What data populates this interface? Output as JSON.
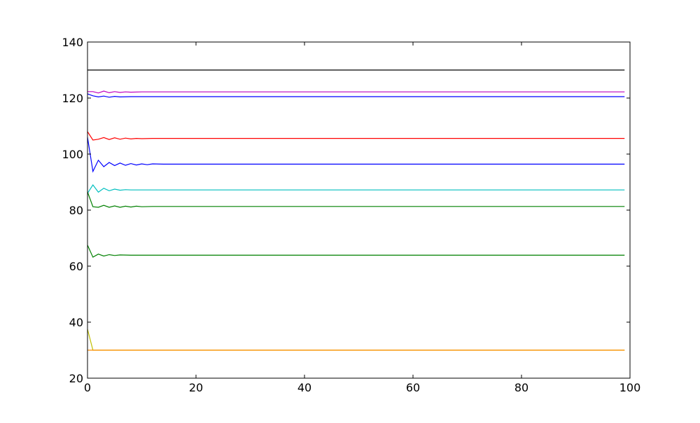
{
  "chart_data": {
    "type": "line",
    "title": "",
    "xlabel": "",
    "ylabel": "",
    "xlim": [
      0,
      100
    ],
    "ylim": [
      20,
      140
    ],
    "xticks": [
      0,
      20,
      40,
      60,
      80,
      100
    ],
    "yticks": [
      20,
      40,
      60,
      80,
      100,
      120,
      140
    ],
    "xtick_labels": [
      "0",
      "20",
      "40",
      "60",
      "80",
      "100"
    ],
    "ytick_labels": [
      "20",
      "40",
      "60",
      "80",
      "100",
      "120",
      "140"
    ],
    "grid": false,
    "legend": "none",
    "x_end": 99,
    "series": [
      {
        "color": "#000000",
        "points": [
          [
            0,
            130
          ],
          [
            99,
            130
          ]
        ]
      },
      {
        "color": "#bf00bf",
        "points": [
          [
            0,
            122.3
          ],
          [
            1,
            122.3
          ],
          [
            2,
            121.8
          ],
          [
            3,
            122.5
          ],
          [
            4,
            121.9
          ],
          [
            5,
            122.3
          ],
          [
            6,
            122.0
          ],
          [
            7,
            122.2
          ],
          [
            8,
            122.1
          ],
          [
            10,
            122.2
          ],
          [
            99,
            122.2
          ]
        ]
      },
      {
        "color": "#0000ff",
        "points": [
          [
            0,
            121.5
          ],
          [
            1,
            120.8
          ],
          [
            2,
            120.4
          ],
          [
            3,
            120.7
          ],
          [
            4,
            120.3
          ],
          [
            5,
            120.6
          ],
          [
            6,
            120.4
          ],
          [
            8,
            120.5
          ],
          [
            99,
            120.5
          ]
        ]
      },
      {
        "color": "#ff0000",
        "points": [
          [
            0,
            108.0
          ],
          [
            1,
            105.0
          ],
          [
            2,
            105.3
          ],
          [
            3,
            105.9
          ],
          [
            4,
            105.2
          ],
          [
            5,
            105.8
          ],
          [
            6,
            105.3
          ],
          [
            7,
            105.7
          ],
          [
            8,
            105.4
          ],
          [
            9,
            105.6
          ],
          [
            10,
            105.5
          ],
          [
            12,
            105.6
          ],
          [
            99,
            105.6
          ]
        ]
      },
      {
        "color": "#0000ff",
        "points": [
          [
            0,
            106.0
          ],
          [
            1,
            93.8
          ],
          [
            2,
            97.8
          ],
          [
            3,
            95.5
          ],
          [
            4,
            97.0
          ],
          [
            5,
            95.9
          ],
          [
            6,
            96.8
          ],
          [
            7,
            96.0
          ],
          [
            8,
            96.6
          ],
          [
            9,
            96.1
          ],
          [
            10,
            96.5
          ],
          [
            11,
            96.2
          ],
          [
            12,
            96.5
          ],
          [
            14,
            96.4
          ],
          [
            99,
            96.4
          ]
        ]
      },
      {
        "color": "#00bfbf",
        "points": [
          [
            0,
            86.0
          ],
          [
            1,
            89.0
          ],
          [
            2,
            86.4
          ],
          [
            3,
            87.8
          ],
          [
            4,
            86.9
          ],
          [
            5,
            87.5
          ],
          [
            6,
            87.1
          ],
          [
            7,
            87.3
          ],
          [
            8,
            87.2
          ],
          [
            99,
            87.2
          ]
        ]
      },
      {
        "color": "#008000",
        "points": [
          [
            0,
            86.5
          ],
          [
            1,
            81.2
          ],
          [
            2,
            81.0
          ],
          [
            3,
            81.7
          ],
          [
            4,
            81.0
          ],
          [
            5,
            81.5
          ],
          [
            6,
            81.0
          ],
          [
            7,
            81.4
          ],
          [
            8,
            81.1
          ],
          [
            9,
            81.4
          ],
          [
            10,
            81.2
          ],
          [
            12,
            81.3
          ],
          [
            99,
            81.3
          ]
        ]
      },
      {
        "color": "#008000",
        "points": [
          [
            0,
            67.5
          ],
          [
            1,
            63.2
          ],
          [
            2,
            64.3
          ],
          [
            3,
            63.6
          ],
          [
            4,
            64.1
          ],
          [
            5,
            63.8
          ],
          [
            6,
            64.0
          ],
          [
            8,
            63.9
          ],
          [
            99,
            63.9
          ]
        ]
      },
      {
        "color": "#bfbf00",
        "points": [
          [
            0,
            37.5
          ],
          [
            1,
            30.0
          ],
          [
            99,
            30.0
          ]
        ]
      },
      {
        "color": "#ff8c00",
        "points": [
          [
            0,
            30.0
          ],
          [
            99,
            30.0
          ]
        ]
      }
    ]
  }
}
